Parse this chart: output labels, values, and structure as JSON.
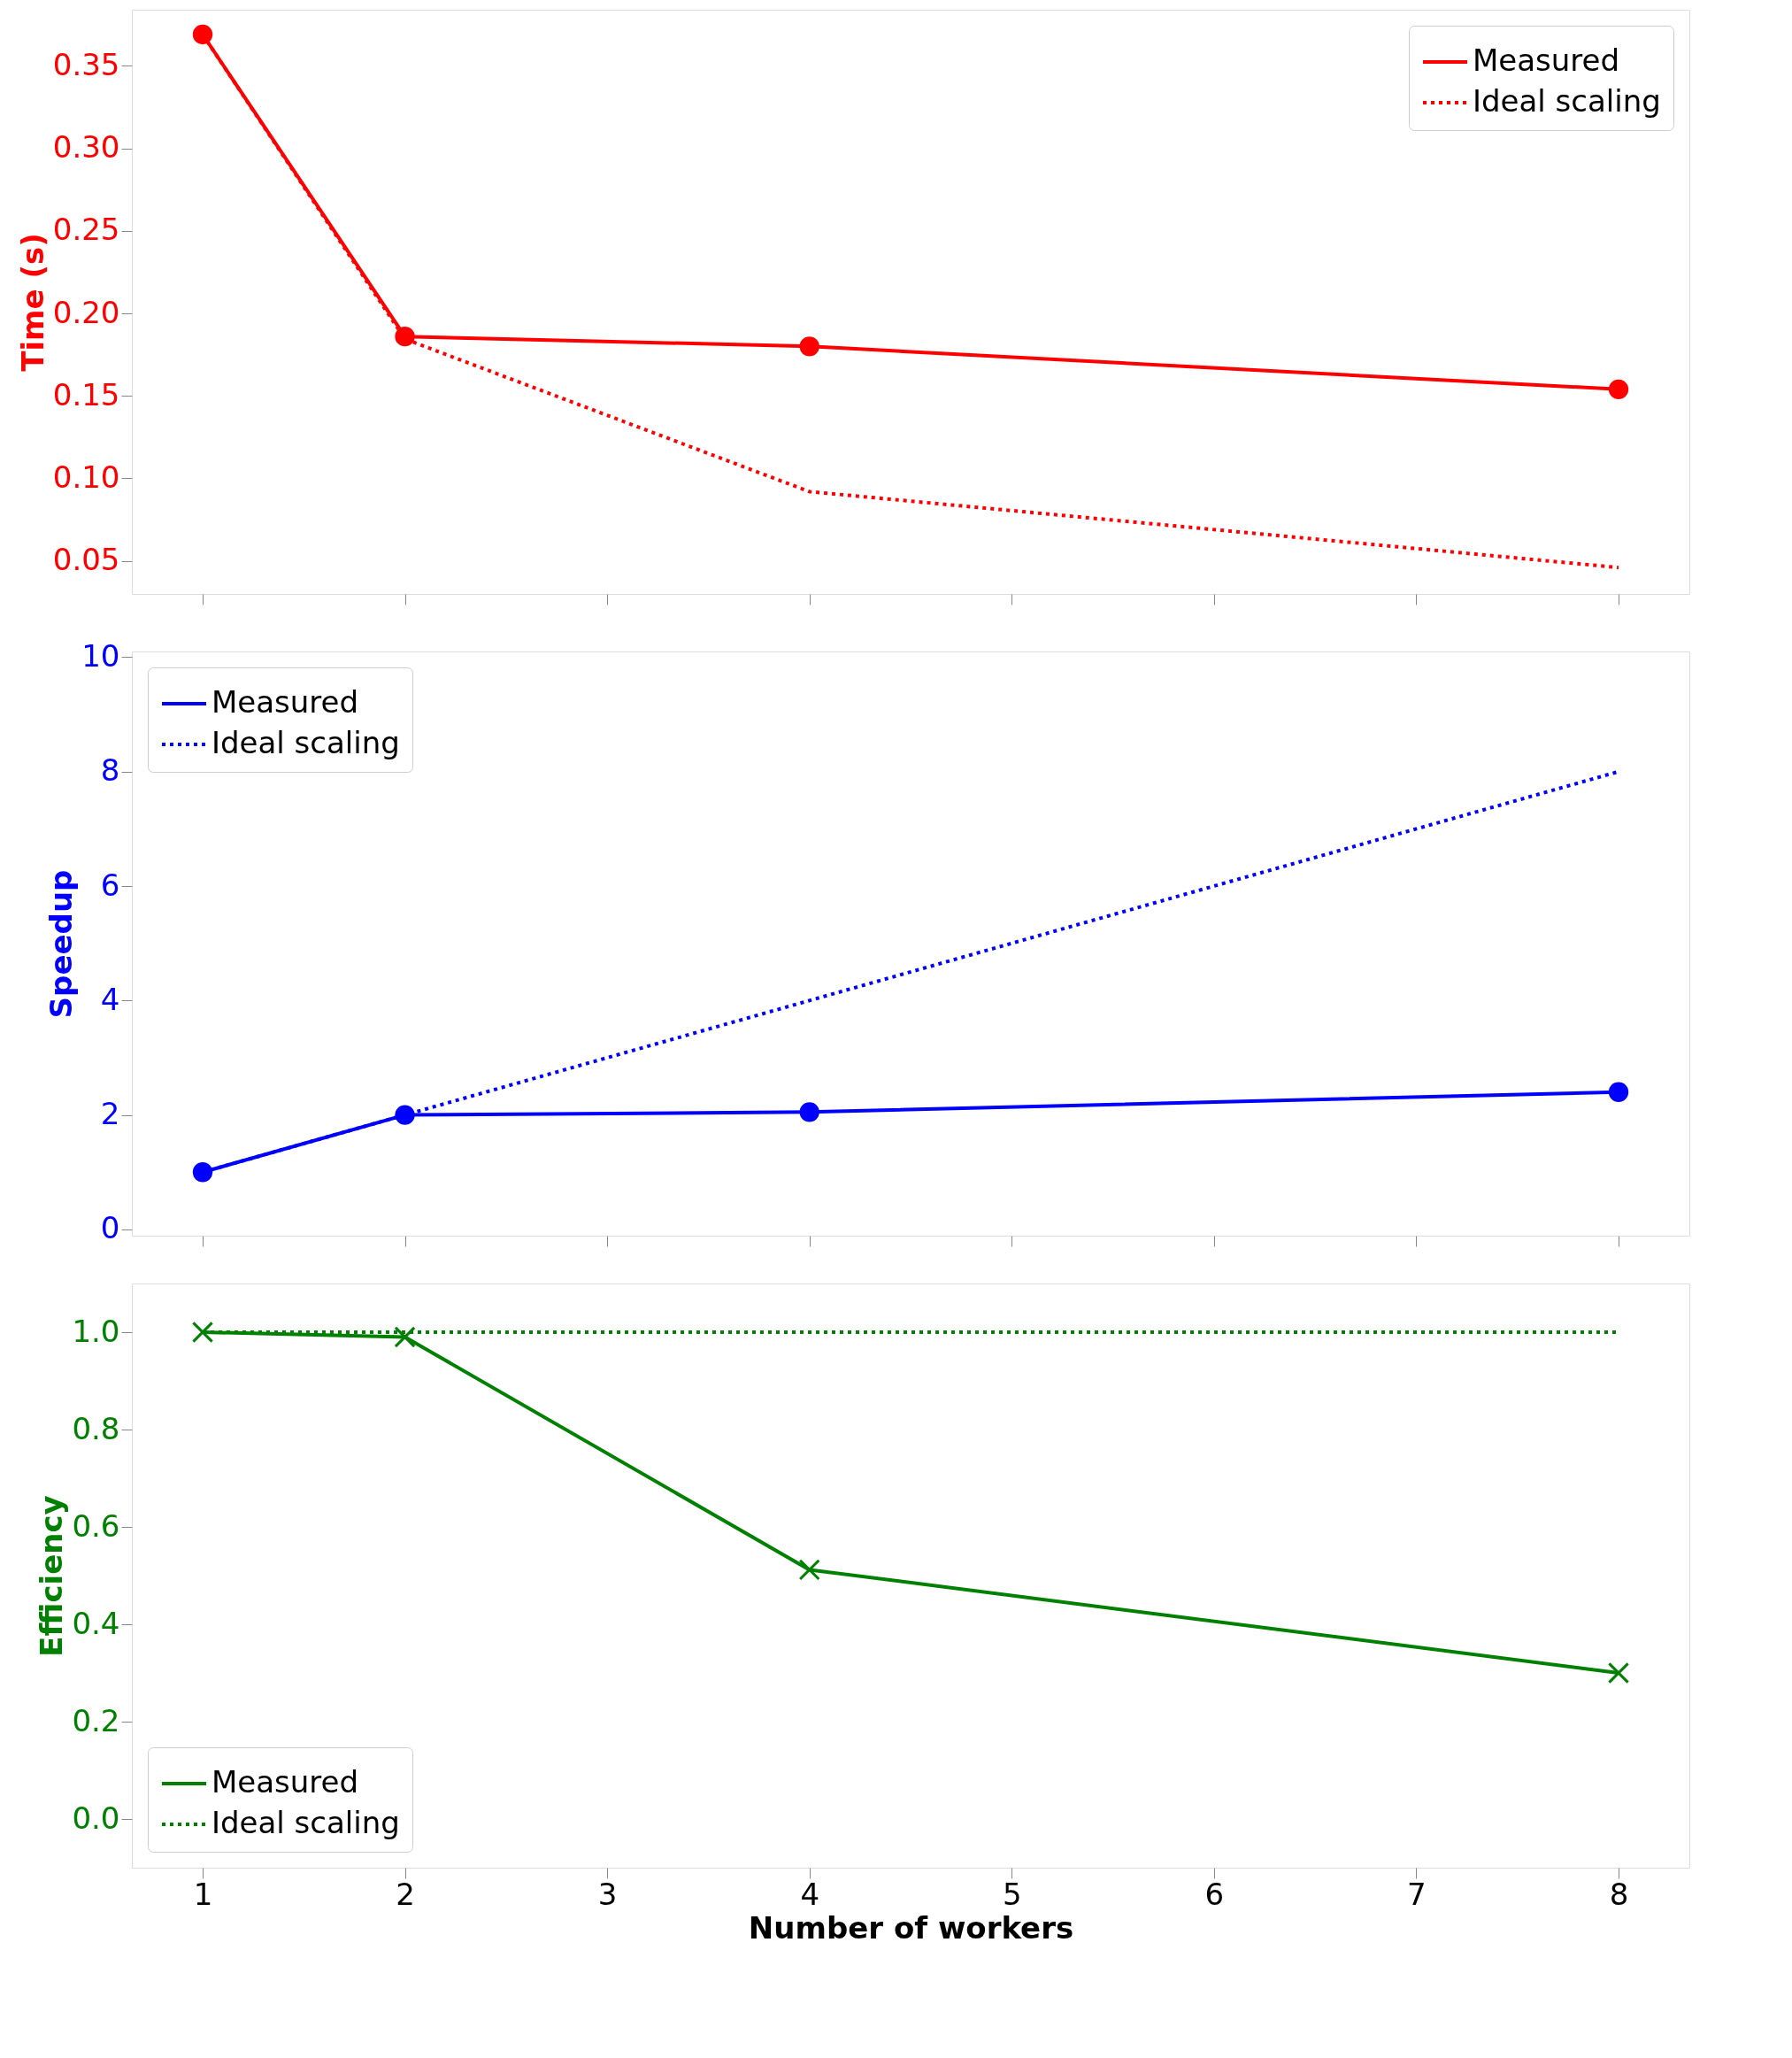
{
  "chart_data": [
    {
      "type": "line",
      "x": [
        1,
        2,
        4,
        8
      ],
      "ylabel": "Time (s)",
      "xlim": [
        0.65,
        8.35
      ],
      "xticks": [
        1,
        2,
        3,
        4,
        5,
        6,
        7,
        8
      ],
      "ylim": [
        0.03,
        0.384
      ],
      "yticks": [
        0.05,
        {
          "value": 0.1,
          "label": "0.10"
        },
        0.15,
        {
          "value": 0.2,
          "label": "0.20"
        },
        0.25,
        {
          "value": 0.3,
          "label": "0.30"
        },
        0.35
      ],
      "tick_labels": "y",
      "legend": "top right",
      "series": [
        {
          "name": "Measured",
          "color": "#ff0000",
          "values": [
            0.369,
            0.186,
            0.18,
            0.154
          ],
          "marker": "circle",
          "line_style": "solid"
        },
        {
          "name": "Ideal scaling",
          "color": "#ff0000",
          "values": [
            0.369,
            0.1845,
            0.092,
            0.046
          ],
          "marker": "none",
          "line_style": "dotted"
        }
      ]
    },
    {
      "type": "line",
      "x": [
        1,
        2,
        4,
        8
      ],
      "ylabel": "Speedup",
      "xlim": [
        0.65,
        8.35
      ],
      "xticks": [
        1,
        2,
        3,
        4,
        5,
        6,
        7,
        8
      ],
      "ylim": [
        -0.11,
        10.1
      ],
      "yticks": [
        0,
        2,
        4,
        6,
        8,
        10
      ],
      "tick_labels": "y",
      "legend": "top left",
      "series": [
        {
          "name": "Measured",
          "color": "#0000ff",
          "values": [
            1,
            2.0,
            2.05,
            2.4
          ],
          "marker": "circle",
          "line_style": "solid"
        },
        {
          "name": "Ideal scaling",
          "color": "#0000ff",
          "values": [
            1,
            2,
            4,
            8
          ],
          "marker": "none",
          "line_style": "dotted"
        }
      ]
    },
    {
      "type": "line",
      "x": [
        1,
        2,
        4,
        8
      ],
      "xlabel": "Number of workers",
      "ylabel": "Efficiency",
      "xlim": [
        0.65,
        8.35
      ],
      "xticks": [
        1,
        2,
        3,
        4,
        5,
        6,
        7,
        8
      ],
      "ylim": [
        -0.1,
        1.1
      ],
      "yticks": [
        {
          "value": 0,
          "label": "0.0"
        },
        0.2,
        0.4,
        0.6,
        0.8,
        {
          "value": 1,
          "label": "1.0"
        }
      ],
      "legend": "bottom left",
      "series": [
        {
          "name": "Measured",
          "color": "#008000",
          "values": [
            1.0,
            0.99,
            0.512,
            0.3
          ],
          "marker": "cross",
          "line_style": "solid"
        },
        {
          "name": "Ideal scaling",
          "color": "#008000",
          "values": [
            1,
            1,
            1,
            1
          ],
          "marker": "none",
          "line_style": "dotted"
        }
      ]
    }
  ]
}
